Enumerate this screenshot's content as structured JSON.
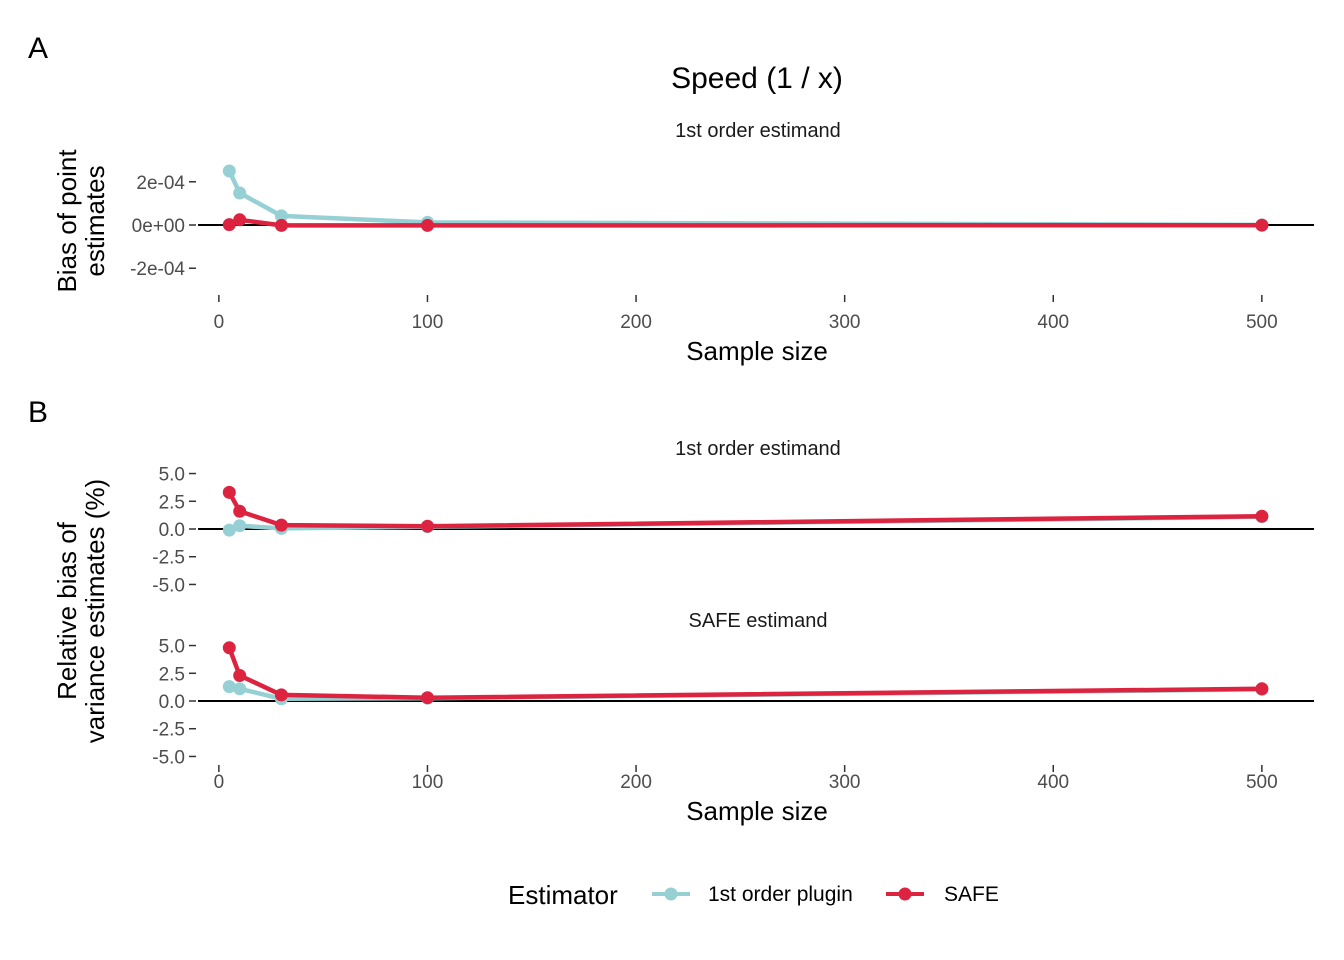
{
  "tags": [
    "A",
    "B"
  ],
  "title": "Speed (1 / x)",
  "colors": {
    "plugin": "#96d0d4",
    "safe": "#dc2440",
    "zero_line": "#000000",
    "tick": "#333333"
  },
  "legend": {
    "title": "Estimator",
    "placement": "bottom",
    "items": [
      {
        "key": "plugin",
        "label": "1st order plugin"
      },
      {
        "key": "safe",
        "label": "SAFE"
      }
    ]
  },
  "chart_data": [
    {
      "type": "line",
      "tag": "A",
      "title": "Speed (1 / x)",
      "ylabel": "Bias of point\nestimates",
      "xlabel": "Sample size",
      "xlim": [
        -10,
        525
      ],
      "x_ticks": [
        0,
        100,
        200,
        300,
        400,
        500
      ],
      "x_tick_labels": [
        "0",
        "100",
        "200",
        "300",
        "400",
        "500"
      ],
      "grid": false,
      "facets": [
        {
          "strip": "1st order estimand",
          "ylim": [
            -0.00031,
            0.00031
          ],
          "y_ticks": [
            -0.0002,
            0,
            0.0002
          ],
          "y_tick_labels": [
            "-2e-04",
            "0e+00",
            "2e-04"
          ],
          "series": [
            {
              "name": "1st order plugin",
              "key": "plugin",
              "x": [
                5,
                10,
                30,
                100,
                500
              ],
              "y": [
                0.00025,
                0.000148,
                4.2e-05,
                1.2e-05,
                5e-07
              ]
            },
            {
              "name": "SAFE",
              "key": "safe",
              "x": [
                5,
                10,
                30,
                100,
                500
              ],
              "y": [
                2e-06,
                2.4e-05,
                -2e-06,
                -2e-06,
                -1e-06
              ]
            }
          ]
        }
      ]
    },
    {
      "type": "line",
      "tag": "B",
      "ylabel": "Relative bias of\nvariance estimates (%)",
      "xlabel": "Sample size",
      "xlim": [
        -10,
        525
      ],
      "x_ticks": [
        0,
        100,
        200,
        300,
        400,
        500
      ],
      "x_tick_labels": [
        "0",
        "100",
        "200",
        "300",
        "400",
        "500"
      ],
      "grid": false,
      "facets": [
        {
          "strip": "1st order estimand",
          "ylim": [
            -5.5,
            5.5
          ],
          "y_ticks": [
            -5,
            -2.5,
            0,
            2.5,
            5
          ],
          "y_tick_labels": [
            "-5.0",
            "-2.5",
            "0.0",
            "2.5",
            "5.0"
          ],
          "series": [
            {
              "name": "1st order plugin",
              "key": "plugin",
              "x": [
                5,
                10,
                30,
                100,
                500
              ],
              "y": [
                -0.1,
                0.3,
                0.05,
                0.2,
                1.1
              ]
            },
            {
              "name": "SAFE",
              "key": "safe",
              "x": [
                5,
                10,
                30,
                100,
                500
              ],
              "y": [
                3.3,
                1.6,
                0.35,
                0.25,
                1.15
              ]
            }
          ]
        },
        {
          "strip": "SAFE estimand",
          "ylim": [
            -5.5,
            5.5
          ],
          "y_ticks": [
            -5,
            -2.5,
            0,
            2.5,
            5
          ],
          "y_tick_labels": [
            "-5.0",
            "-2.5",
            "0.0",
            "2.5",
            "5.0"
          ],
          "series": [
            {
              "name": "1st order plugin",
              "key": "plugin",
              "x": [
                5,
                10,
                30,
                100,
                500
              ],
              "y": [
                1.3,
                1.1,
                0.2,
                0.25,
                1.05
              ]
            },
            {
              "name": "SAFE",
              "key": "safe",
              "x": [
                5,
                10,
                30,
                100,
                500
              ],
              "y": [
                4.8,
                2.3,
                0.55,
                0.3,
                1.1
              ]
            }
          ]
        }
      ]
    }
  ]
}
